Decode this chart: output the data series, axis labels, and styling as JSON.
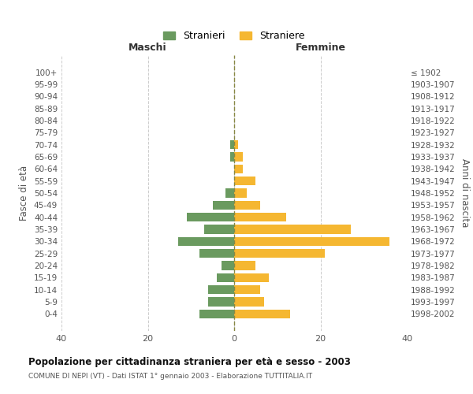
{
  "age_groups": [
    "100+",
    "95-99",
    "90-94",
    "85-89",
    "80-84",
    "75-79",
    "70-74",
    "65-69",
    "60-64",
    "55-59",
    "50-54",
    "45-49",
    "40-44",
    "35-39",
    "30-34",
    "25-29",
    "20-24",
    "15-19",
    "10-14",
    "5-9",
    "0-4"
  ],
  "birth_years": [
    "≤ 1902",
    "1903-1907",
    "1908-1912",
    "1913-1917",
    "1918-1922",
    "1923-1927",
    "1928-1932",
    "1933-1937",
    "1938-1942",
    "1943-1947",
    "1948-1952",
    "1953-1957",
    "1958-1962",
    "1963-1967",
    "1968-1972",
    "1973-1977",
    "1978-1982",
    "1983-1987",
    "1988-1992",
    "1993-1997",
    "1998-2002"
  ],
  "males": [
    0,
    0,
    0,
    0,
    0,
    0,
    1,
    1,
    0,
    0,
    2,
    5,
    11,
    7,
    13,
    8,
    3,
    4,
    6,
    6,
    8
  ],
  "females": [
    0,
    0,
    0,
    0,
    0,
    0,
    1,
    2,
    2,
    5,
    3,
    6,
    12,
    27,
    36,
    21,
    5,
    8,
    6,
    7,
    13
  ],
  "male_color": "#6a9a5f",
  "female_color": "#f5b731",
  "background_color": "#ffffff",
  "grid_color": "#cccccc",
  "title": "Popolazione per cittadinanza straniera per età e sesso - 2003",
  "subtitle": "COMUNE DI NEPI (VT) - Dati ISTAT 1° gennaio 2003 - Elaborazione TUTTITALIA.IT",
  "xlabel_left": "Maschi",
  "xlabel_right": "Femmine",
  "ylabel_left": "Fasce di età",
  "ylabel_right": "Anni di nascita",
  "legend_male": "Stranieri",
  "legend_female": "Straniere",
  "xlim": 40,
  "x_ticks": [
    -40,
    -20,
    0,
    20,
    40
  ],
  "x_tick_labels": [
    "40",
    "20",
    "0",
    "20",
    "40"
  ]
}
